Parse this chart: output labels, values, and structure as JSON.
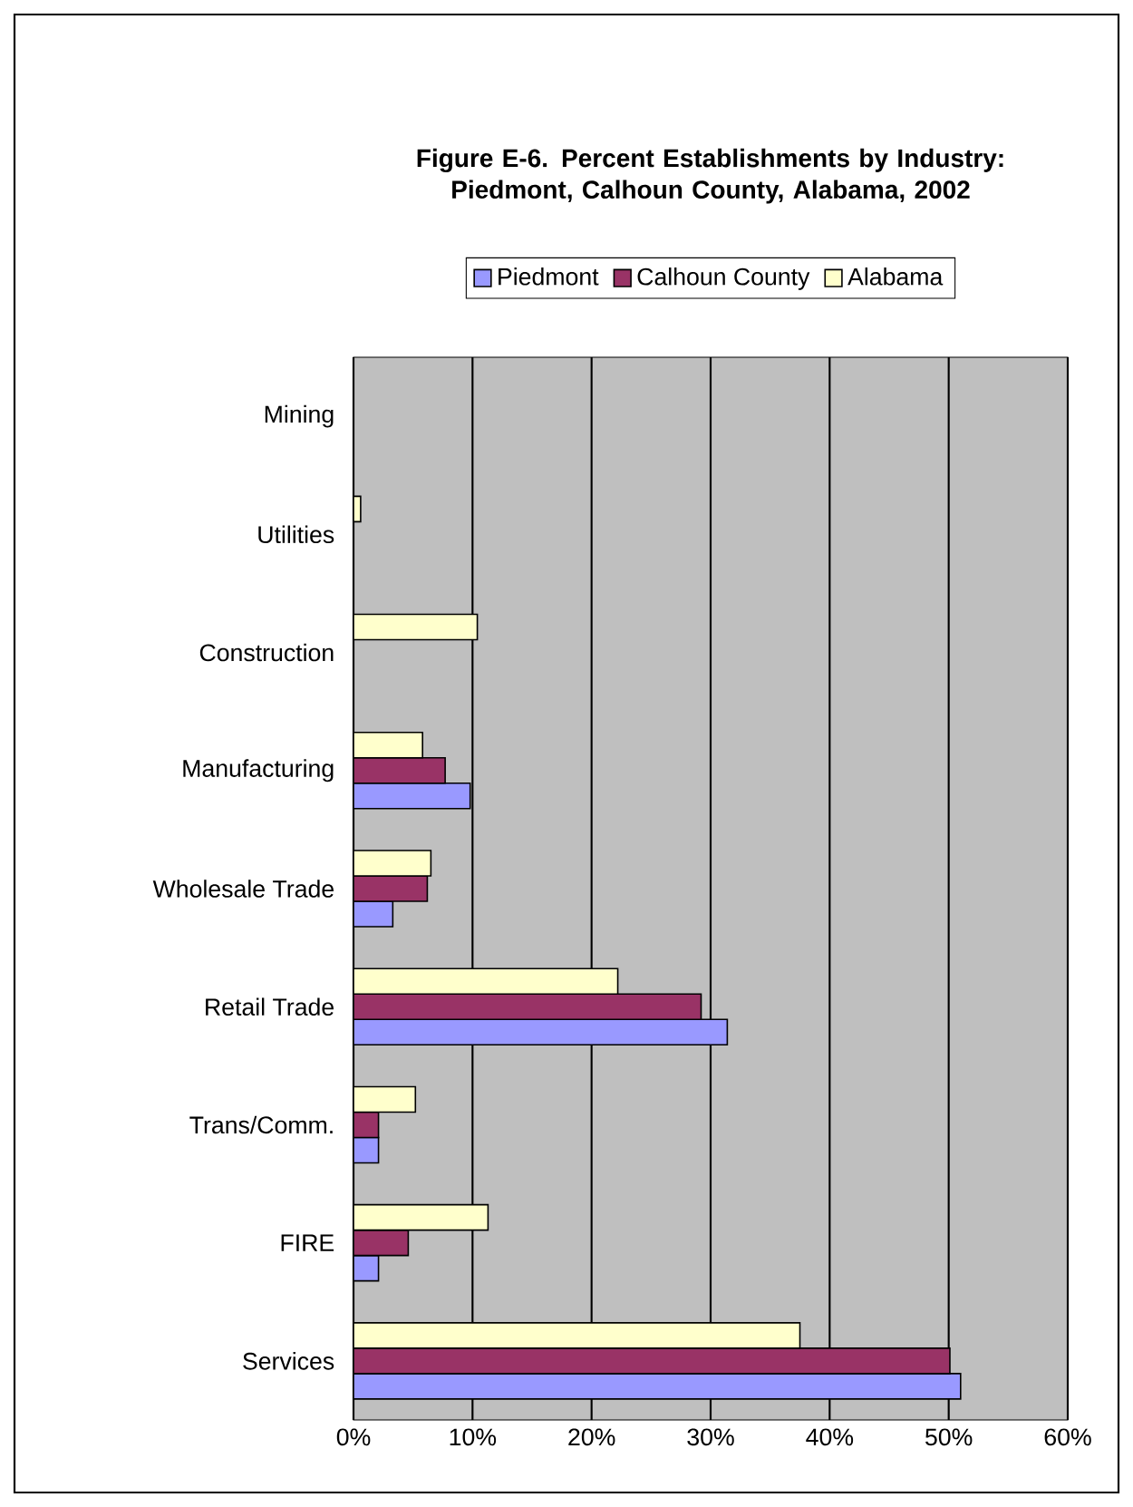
{
  "chart_data": {
    "type": "bar",
    "orientation": "horizontal",
    "title": "Figure E-6. Percent Establishments by Industry: Piedmont, Calhoun County, Alabama, 2002",
    "categories": [
      "Mining",
      "Utilities",
      "Construction",
      "Manufacturing",
      "Wholesale Trade",
      "Retail Trade",
      "Trans/Comm.",
      "FIRE",
      "Services"
    ],
    "series": [
      {
        "name": "Piedmont",
        "color": "#9999ff",
        "values": [
          0,
          0,
          0,
          9.8,
          3.3,
          31.4,
          2.1,
          2.1,
          51.0
        ]
      },
      {
        "name": "Calhoun County",
        "color": "#993366",
        "values": [
          0,
          0,
          0,
          7.7,
          6.2,
          29.2,
          2.1,
          4.6,
          50.1
        ]
      },
      {
        "name": "Alabama",
        "color": "#ffffcc",
        "values": [
          0,
          0.6,
          10.4,
          5.8,
          6.5,
          22.2,
          5.2,
          11.3,
          37.5
        ]
      }
    ],
    "xlim": [
      0,
      60
    ],
    "xticks": [
      {
        "value": 0,
        "label": "0%"
      },
      {
        "value": 10,
        "label": "10%"
      },
      {
        "value": 20,
        "label": "20%"
      },
      {
        "value": 30,
        "label": "30%"
      },
      {
        "value": 40,
        "label": "40%"
      },
      {
        "value": 50,
        "label": "50%"
      },
      {
        "value": 60,
        "label": "60%"
      }
    ],
    "grid": "x",
    "legend": "top"
  }
}
